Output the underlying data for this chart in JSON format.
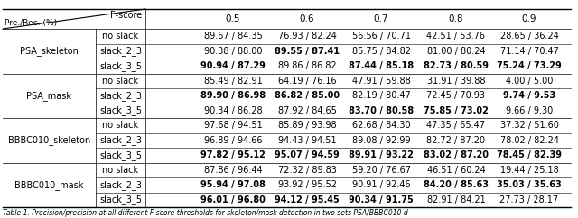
{
  "groups": [
    {
      "group_label": "PSA_skeleton",
      "rows": [
        {
          "label": "no slack",
          "values": [
            "89.67 / 84.35",
            "76.93 / 82.24",
            "56.56 / 70.71",
            "42.51 / 53.76",
            "28.65 / 36.24"
          ],
          "bold": [
            false,
            false,
            false,
            false,
            false
          ]
        },
        {
          "label": "slack_2_3",
          "values": [
            "90.38 / 88.00",
            "89.55 / 87.41",
            "85.75 / 84.82",
            "81.00 / 80.24",
            "71.14 / 70.47"
          ],
          "bold": [
            false,
            true,
            false,
            false,
            false
          ]
        },
        {
          "label": "slack_3_5",
          "values": [
            "90.94 / 87.29",
            "89.86 / 86.82",
            "87.44 / 85.18",
            "82.73 / 80.59",
            "75.24 / 73.29"
          ],
          "bold": [
            true,
            false,
            true,
            true,
            true
          ]
        }
      ]
    },
    {
      "group_label": "PSA_mask",
      "rows": [
        {
          "label": "no slack",
          "values": [
            "85.49 / 82.91",
            "64.19 / 76.16",
            "47.91 / 59.88",
            "31.91 / 39.88",
            "4.00 / 5.00"
          ],
          "bold": [
            false,
            false,
            false,
            false,
            false
          ]
        },
        {
          "label": "slack_2_3",
          "values": [
            "89.90 / 86.98",
            "86.82 / 85.00",
            "82.19 / 80.47",
            "72.45 / 70.93",
            "9.74 / 9.53"
          ],
          "bold": [
            true,
            true,
            false,
            false,
            true
          ]
        },
        {
          "label": "slack_3_5",
          "values": [
            "90.34 / 86.28",
            "87.92 / 84.65",
            "83.70 / 80.58",
            "75.85 / 73.02",
            "9.66 / 9.30"
          ],
          "bold": [
            false,
            false,
            true,
            true,
            false
          ]
        }
      ]
    },
    {
      "group_label": "BBBC010_skeleton",
      "rows": [
        {
          "label": "no slack",
          "values": [
            "97.68 / 94.51",
            "85.89 / 93.98",
            "62.68 / 84.30",
            "47.35 / 65.47",
            "37.32 / 51.60"
          ],
          "bold": [
            false,
            false,
            false,
            false,
            false
          ]
        },
        {
          "label": "slack_2_3",
          "values": [
            "96.89 / 94.66",
            "94.43 / 94.51",
            "89.08 / 92.99",
            "82.72 / 87.20",
            "78.02 / 82.24"
          ],
          "bold": [
            false,
            false,
            false,
            false,
            false
          ]
        },
        {
          "label": "slack_3_5",
          "values": [
            "97.82 / 95.12",
            "95.07 / 94.59",
            "89.91 / 93.22",
            "83.02 / 87.20",
            "78.45 / 82.39"
          ],
          "bold": [
            true,
            true,
            true,
            true,
            true
          ]
        }
      ]
    },
    {
      "group_label": "BBBC010_mask",
      "rows": [
        {
          "label": "no slack",
          "values": [
            "87.86 / 96.44",
            "72.32 / 89.83",
            "59.20 / 76.67",
            "46.51 / 60.24",
            "19.44 / 25.18"
          ],
          "bold": [
            false,
            false,
            false,
            false,
            false
          ]
        },
        {
          "label": "slack_2_3",
          "values": [
            "95.94 / 97.08",
            "93.92 / 95.52",
            "90.91 / 92.46",
            "84.20 / 85.63",
            "35.03 / 35.63"
          ],
          "bold": [
            true,
            false,
            false,
            true,
            true
          ]
        },
        {
          "label": "slack_3_5",
          "values": [
            "96.01 / 96.80",
            "94.12 / 95.45",
            "90.34 / 91.75",
            "82.91 / 84.21",
            "27.73 / 28.17"
          ],
          "bold": [
            true,
            true,
            true,
            false,
            false
          ]
        }
      ]
    }
  ],
  "fscore_cols": [
    "0.5",
    "0.6",
    "0.7",
    "0.8",
    "0.9"
  ],
  "caption": "Table 1. Precision/precision at all different F-score thresholds for skeleton/mask detection in two sets PSA/BBBC010 d",
  "background_color": "#ffffff",
  "font_size": 7.0,
  "header_font_size": 7.5,
  "caption_font_size": 5.5,
  "lw_thick": 1.0,
  "lw_thin": 0.5,
  "lw_inner": 0.4
}
